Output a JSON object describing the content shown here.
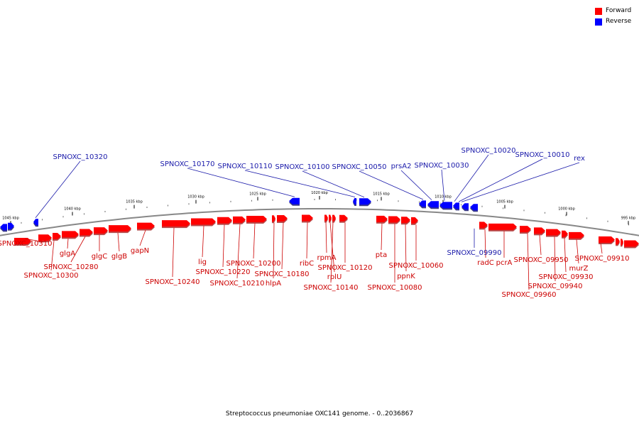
{
  "legend": {
    "forward_label": "Forward",
    "reverse_label": "Reverse",
    "forward_color": "#ff0000",
    "reverse_color": "#0000ff"
  },
  "colors": {
    "forward_label": "#cc0000",
    "reverse_label": "#1a1aaa",
    "forward_shadow": "#b84a4a",
    "reverse_shadow": "#3a3a88",
    "backbone": "#888888"
  },
  "caption": "Streptococcus pneumoniae OXC141 genome. - 0..2036867",
  "ruler_ticks": [
    "1045 kbp",
    "1040 kbp",
    "1035 kbp",
    "1030 kbp",
    "1025 kbp",
    "1020 kbp",
    "1015 kbp",
    "1010 kbp",
    "1005 kbp",
    "1000 kbp",
    "995 kbp"
  ],
  "forward_genes": [
    "SPNOXC_10310",
    "SPNOXC_10300",
    "glgA",
    "SPNOXC_10280",
    "glgC",
    "glgB",
    "gapN",
    "SPNOXC_10240",
    "lig",
    "SPNOXC_10220",
    "SPNOXC_10210",
    "SPNOXC_10200",
    "hlpA",
    "SPNOXC_10180",
    "ribC",
    "rpmA",
    "rplU",
    "SPNOXC_10140",
    "SPNOXC_10120",
    "pta",
    "SPNOXC_10080",
    "ppnK",
    "SPNOXC_10060",
    "radC",
    "pcrA",
    "SPNOXC_09960",
    "SPNOXC_09950",
    "SPNOXC_09940",
    "SPNOXC_09930",
    "murZ",
    "SPNOXC_09910"
  ],
  "reverse_genes": [
    "SPNOXC_10320",
    "SPNOXC_10170",
    "SPNOXC_10110",
    "SPNOXC_10100",
    "SPNOXC_10050",
    "prsA2",
    "SPNOXC_10030",
    "SPNOXC_10020",
    "SPNOXC_10010",
    "rex",
    "SPNOXC_09990"
  ]
}
